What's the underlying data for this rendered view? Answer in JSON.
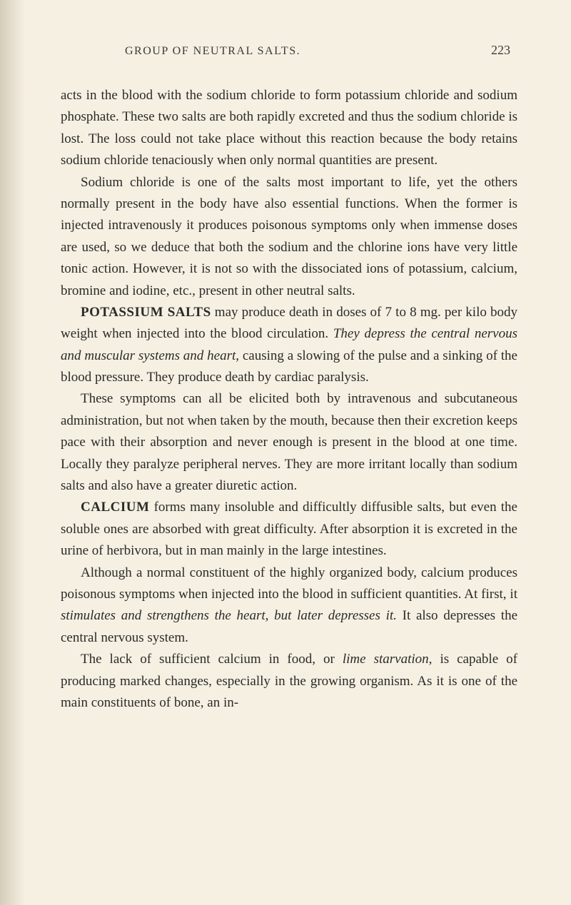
{
  "header": {
    "title": "GROUP OF NEUTRAL SALTS.",
    "page_number": "223"
  },
  "paragraphs": {
    "p1_start": "acts in the blood with the sodium chloride to form potassium chloride and sodium phosphate. These two salts are both rapidly excreted and thus the sodium chloride is lost. The loss could not take place without this reaction because the body retains sodium chloride tenaciously when only normal quantities are present.",
    "p2": "Sodium chloride is one of the salts most important to life, yet the others normally present in the body have also essential functions. When the former is injected intravenously it produces poisonous symptoms only when immense doses are used, so we deduce that both the sodium and the chlorine ions have very little tonic action. However, it is not so with the dissociated ions of potassium, calcium, bromine and iodine, etc., present in other neutral salts.",
    "p3_bold": "POTASSIUM SALTS",
    "p3_text1": " may produce death in doses of 7 to 8 mg. per kilo body weight when injected into the blood circulation. ",
    "p3_italic": "They depress the central nervous and muscular systems and heart",
    "p3_text2": ", causing a slowing of the pulse and a sinking of the blood pressure. They produce death by cardiac paralysis.",
    "p4": "These symptoms can all be elicited both by intravenous and subcutaneous administration, but not when taken by the mouth, because then their excretion keeps pace with their absorption and never enough is present in the blood at one time. Locally they paralyze peripheral nerves. They are more irritant locally than sodium salts and also have a greater diuretic action.",
    "p5_bold": "CALCIUM",
    "p5_text": " forms many insoluble and difficultly diffusible salts, but even the soluble ones are absorbed with great difficulty. After absorption it is excreted in the urine of herbivora, but in man mainly in the large intestines.",
    "p6_text1": "Although a normal constituent of the highly organized body, calcium produces poisonous symptoms when injected into the blood in sufficient quantities. At first, it ",
    "p6_italic": "stimulates and strengthens the heart, but later depresses it.",
    "p6_text2": " It also depresses the central nervous system.",
    "p7_text1": "The lack of sufficient calcium in food, or ",
    "p7_italic": "lime starvation",
    "p7_text2": ", is capable of producing marked changes, especially in the growing organism. As it is one of the main constituents of bone, an in-"
  }
}
